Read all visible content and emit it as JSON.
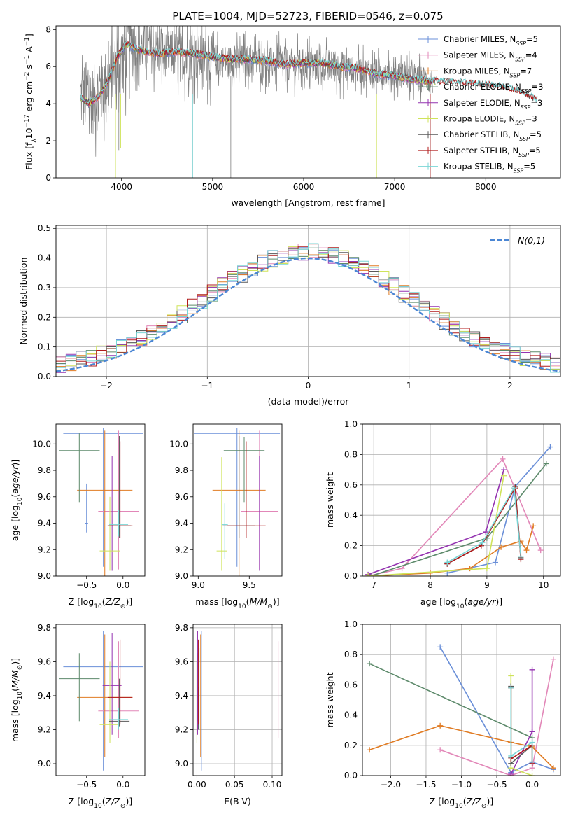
{
  "figure_title": "PLATE=1004, MJD=52723, FIBERID=0546, z=0.075",
  "colors": {
    "Chabrier MILES": "#6a8fd8",
    "Salpeter MILES": "#e287b8",
    "Kroupa MILES": "#e07b23",
    "Chabrier ELODIE": "#5d8a6b",
    "Salpeter ELODIE": "#9433b0",
    "Kroupa ELODIE": "#cfe35a",
    "Chabrier STELIB": "#585858",
    "Salpeter STELIB": "#b11b1b",
    "Kroupa STELIB": "#79d6d6"
  },
  "chart_data": [
    {
      "type": "line",
      "title": "PLATE=1004, MJD=52723, FIBERID=0546, z=0.075",
      "xlabel": "wavelength [Angstrom, rest frame]",
      "ylabel": "Flux [f",
      "xlim": [
        3280,
        8820
      ],
      "ylim": [
        0,
        8.2
      ],
      "xticks": [
        4000,
        5000,
        6000,
        7000,
        8000
      ],
      "yticks": [
        0,
        2,
        4,
        6,
        8
      ],
      "data_color": "#808080",
      "spectrum_envelope": {
        "x": [
          3550,
          3700,
          3900,
          4100,
          4300,
          4500,
          4800,
          5100,
          5400,
          5800,
          6200,
          6600,
          7000,
          7400
        ],
        "y": [
          4.4,
          4.2,
          5.6,
          7.3,
          6.9,
          6.7,
          6.5,
          6.3,
          6.3,
          6.1,
          6.1,
          5.8,
          5.6,
          5.2
        ]
      },
      "model_curve": {
        "x": [
          3550,
          3650,
          3750,
          3850,
          3950,
          4050,
          4150,
          4250,
          4400,
          4600,
          4800,
          5000,
          5200,
          5400,
          5600,
          5800,
          6000,
          6200,
          6400,
          6600,
          6800,
          7000,
          7200,
          7400,
          7600,
          7800,
          8000,
          8200,
          8400,
          8550
        ],
        "y": [
          4.3,
          4.0,
          4.4,
          5.2,
          6.5,
          7.2,
          7.0,
          6.8,
          6.7,
          6.8,
          6.7,
          6.5,
          6.4,
          6.4,
          6.3,
          6.1,
          6.2,
          6.2,
          6.0,
          5.9,
          5.6,
          5.5,
          5.3,
          5.2,
          5.15,
          5.1,
          5.0,
          4.9,
          4.6,
          4.2
        ]
      },
      "series": [
        {
          "name": "Chabrier MILES, N",
          "nssp": "=5"
        },
        {
          "name": "Salpeter MILES, N",
          "nssp": "=4"
        },
        {
          "name": "Kroupa MILES, N",
          "nssp": "=7"
        },
        {
          "name": "Chabrier ELODIE, N",
          "nssp": "=3"
        },
        {
          "name": "Salpeter ELODIE, N",
          "nssp": "=3"
        },
        {
          "name": "Kroupa ELODIE, N",
          "nssp": "=3"
        },
        {
          "name": "Chabrier STELIB, N",
          "nssp": "=5"
        },
        {
          "name": "Salpeter STELIB, N",
          "nssp": "=5"
        },
        {
          "name": "Kroupa STELIB, N",
          "nssp": "=5"
        }
      ]
    },
    {
      "type": "line",
      "xlabel": "(data-model)/error",
      "ylabel": "Normed distribution",
      "xlim": [
        -2.5,
        2.5
      ],
      "ylim": [
        0,
        0.51
      ],
      "xticks": [
        -2,
        -1,
        0,
        1,
        2
      ],
      "yticks": [
        0.0,
        0.1,
        0.2,
        0.3,
        0.4,
        0.5
      ],
      "legend": "N(0,1)",
      "grid": true
    },
    {
      "type": "scatter",
      "xlabel": "Z [log",
      "ylabel": "age  [log",
      "xlim": [
        -0.92,
        0.3
      ],
      "ylim": [
        9.0,
        10.15
      ],
      "xticks": [
        -0.5,
        0.0
      ],
      "yticks": [
        9.0,
        9.2,
        9.4,
        9.6,
        9.8,
        10.0
      ],
      "points": [
        {
          "m": "Chabrier MILES",
          "x": -0.27,
          "y": 10.08,
          "xe": 0.55,
          "ye0": 9.07,
          "ye1": 10.12
        },
        {
          "m": "Chabrier MILES",
          "x": -0.5,
          "y": 9.4,
          "xe": 0.02,
          "ye0": 9.33,
          "ye1": 9.7
        },
        {
          "m": "Salpeter MILES",
          "x": -0.06,
          "y": 9.49,
          "xe": 0.28,
          "ye0": 9.05,
          "ye1": 10.1
        },
        {
          "m": "Kroupa MILES",
          "x": -0.25,
          "y": 9.65,
          "xe": 0.38,
          "ye0": 9.0,
          "ye1": 10.1
        },
        {
          "m": "Chabrier ELODIE",
          "x": -0.6,
          "y": 9.95,
          "xe": 0.28,
          "ye0": 9.56,
          "ye1": 10.08
        },
        {
          "m": "Salpeter ELODIE",
          "x": -0.15,
          "y": 9.22,
          "xe": 0.13,
          "ye0": 9.04,
          "ye1": 9.91
        },
        {
          "m": "Kroupa ELODIE",
          "x": -0.18,
          "y": 9.19,
          "xe": 0.14,
          "ye0": 9.04,
          "ye1": 9.6
        },
        {
          "m": "Chabrier STELIB",
          "x": -0.05,
          "y": 9.38,
          "xe": 0.16,
          "ye0": 9.29,
          "ye1": 10.06
        },
        {
          "m": "Salpeter STELIB",
          "x": -0.04,
          "y": 9.38,
          "xe": 0.17,
          "ye0": 9.29,
          "ye1": 10.02
        },
        {
          "m": "Kroupa STELIB",
          "x": -0.06,
          "y": 9.39,
          "xe": 0.13,
          "ye0": 9.3,
          "ye1": 9.5
        }
      ]
    },
    {
      "type": "scatter",
      "xlabel": "mass [log",
      "ylabel": "",
      "xlim": [
        8.95,
        9.82
      ],
      "ylim": [
        9.0,
        10.15
      ],
      "xticks": [
        9.0,
        9.5
      ],
      "yticks": [
        9.0,
        9.2,
        9.4,
        9.6,
        9.8,
        10.0
      ],
      "points": [
        {
          "m": "Chabrier MILES",
          "x": 9.38,
          "y": 10.08,
          "xe": 0.42,
          "ye0": 9.07,
          "ye1": 10.12
        },
        {
          "m": "Salpeter MILES",
          "x": 9.6,
          "y": 9.49,
          "xe": 0.18,
          "ye0": 9.05,
          "ye1": 10.1
        },
        {
          "m": "Kroupa MILES",
          "x": 9.4,
          "y": 9.65,
          "xe": 0.26,
          "ye0": 9.0,
          "ye1": 10.1
        },
        {
          "m": "Chabrier ELODIE",
          "x": 9.45,
          "y": 9.95,
          "xe": 0.2,
          "ye0": 9.56,
          "ye1": 10.05
        },
        {
          "m": "Salpeter ELODIE",
          "x": 9.6,
          "y": 9.22,
          "xe": 0.17,
          "ye0": 9.04,
          "ye1": 9.91
        },
        {
          "m": "Kroupa ELODIE",
          "x": 9.23,
          "y": 9.19,
          "xe": 0.05,
          "ye0": 9.04,
          "ye1": 9.9
        },
        {
          "m": "Chabrier STELIB",
          "x": 9.4,
          "y": 9.38,
          "xe": 0.16,
          "ye0": 9.29,
          "ye1": 10.06
        },
        {
          "m": "Salpeter STELIB",
          "x": 9.47,
          "y": 9.38,
          "xe": 0.19,
          "ye0": 9.29,
          "ye1": 10.02
        },
        {
          "m": "Kroupa STELIB",
          "x": 9.26,
          "y": 9.39,
          "xe": 0.03,
          "ye0": 9.13,
          "ye1": 9.55
        }
      ]
    },
    {
      "type": "line",
      "xlabel": "age  [log",
      "ylabel": "mass weight",
      "xlim": [
        6.8,
        10.3
      ],
      "ylim": [
        0,
        1.0
      ],
      "xticks": [
        7,
        8,
        9,
        10
      ],
      "yticks": [
        0.0,
        0.2,
        0.4,
        0.6,
        0.8,
        1.0
      ],
      "grid": true,
      "series": [
        {
          "m": "Chabrier MILES",
          "x": [
            8.3,
            9.15,
            9.5,
            10.12
          ],
          "y": [
            0.02,
            0.09,
            0.59,
            0.85
          ]
        },
        {
          "m": "Salpeter MILES",
          "x": [
            6.9,
            7.5,
            9.28,
            9.95
          ],
          "y": [
            0.0,
            0.05,
            0.77,
            0.17
          ]
        },
        {
          "m": "Kroupa MILES",
          "x": [
            6.9,
            8.0,
            8.7,
            9.25,
            9.6,
            9.7,
            9.82
          ],
          "y": [
            0.0,
            0.02,
            0.05,
            0.19,
            0.23,
            0.17,
            0.33
          ]
        },
        {
          "m": "Chabrier ELODIE",
          "x": [
            6.95,
            9.0,
            10.05
          ],
          "y": [
            0.0,
            0.25,
            0.74
          ]
        },
        {
          "m": "Salpeter ELODIE",
          "x": [
            6.9,
            8.98,
            9.3
          ],
          "y": [
            0.01,
            0.29,
            0.7
          ]
        },
        {
          "m": "Kroupa ELODIE",
          "x": [
            6.9,
            9.0,
            9.3
          ],
          "y": [
            0.0,
            0.05,
            0.66
          ]
        },
        {
          "m": "Chabrier STELIB",
          "x": [
            8.3,
            8.9,
            9.5,
            9.6
          ],
          "y": [
            0.08,
            0.2,
            0.59,
            0.12
          ]
        },
        {
          "m": "Salpeter STELIB",
          "x": [
            8.3,
            8.9,
            9.5,
            9.6
          ],
          "y": [
            0.08,
            0.2,
            0.58,
            0.11
          ]
        },
        {
          "m": "Kroupa STELIB",
          "x": [
            8.3,
            8.92,
            9.48,
            9.6
          ],
          "y": [
            0.09,
            0.22,
            0.58,
            0.13
          ]
        }
      ]
    },
    {
      "type": "scatter",
      "xlabel": "Z [log",
      "ylabel": "mass [log",
      "xlim": [
        -0.92,
        0.3
      ],
      "ylim": [
        8.93,
        9.82
      ],
      "xticks": [
        -0.5,
        0.0
      ],
      "yticks": [
        9.0,
        9.2,
        9.4,
        9.6,
        9.8
      ],
      "points": [
        {
          "m": "Chabrier MILES",
          "x": -0.27,
          "y": 9.57,
          "xe": 0.55,
          "ye0": 8.96,
          "ye1": 9.78
        },
        {
          "m": "Salpeter MILES",
          "x": -0.06,
          "y": 9.31,
          "xe": 0.28,
          "ye0": 9.15,
          "ye1": 9.72
        },
        {
          "m": "Kroupa MILES",
          "x": -0.25,
          "y": 9.39,
          "xe": 0.38,
          "ye0": 9.04,
          "ye1": 9.76
        },
        {
          "m": "Chabrier ELODIE",
          "x": -0.6,
          "y": 9.5,
          "xe": 0.28,
          "ye0": 9.25,
          "ye1": 9.65
        },
        {
          "m": "Salpeter ELODIE",
          "x": -0.15,
          "y": 9.46,
          "xe": 0.13,
          "ye0": 9.17,
          "ye1": 9.77
        },
        {
          "m": "Kroupa ELODIE",
          "x": -0.18,
          "y": 9.23,
          "xe": 0.14,
          "ye0": 9.12,
          "ye1": 9.6
        },
        {
          "m": "Chabrier STELIB",
          "x": -0.05,
          "y": 9.25,
          "xe": 0.14,
          "ye0": 9.22,
          "ye1": 9.5
        },
        {
          "m": "Salpeter STELIB",
          "x": -0.04,
          "y": 9.39,
          "xe": 0.17,
          "ye0": 9.23,
          "ye1": 9.73
        },
        {
          "m": "Kroupa STELIB",
          "x": -0.06,
          "y": 9.26,
          "xe": 0.13,
          "ye0": 9.2,
          "ye1": 9.33
        }
      ]
    },
    {
      "type": "scatter",
      "xlabel": "E(B-V)",
      "ylabel": "",
      "xlim": [
        -0.005,
        0.113
      ],
      "ylim": [
        8.93,
        9.82
      ],
      "xticks": [
        0.0,
        0.05,
        0.1
      ],
      "yticks": [
        9.0,
        9.2,
        9.4,
        9.6,
        9.8
      ],
      "grid": true,
      "points": [
        {
          "m": "Chabrier MILES",
          "x": 0.006,
          "y": 9.57,
          "ye0": 8.96,
          "ye1": 9.78
        },
        {
          "m": "Salpeter MILES",
          "x": 0.108,
          "y": 9.31,
          "ye0": 9.15,
          "ye1": 9.72
        },
        {
          "m": "Kroupa MILES",
          "x": 0.005,
          "y": 9.39,
          "ye0": 9.04,
          "ye1": 9.76
        },
        {
          "m": "Chabrier ELODIE",
          "x": 0.001,
          "y": 9.5,
          "ye0": 9.25,
          "ye1": 9.65
        },
        {
          "m": "Salpeter ELODIE",
          "x": 0.001,
          "y": 9.46,
          "ye0": 9.17,
          "ye1": 9.78
        },
        {
          "m": "Kroupa ELODIE",
          "x": 0.0,
          "y": 9.23,
          "ye0": 9.12,
          "ye1": 9.6
        },
        {
          "m": "Chabrier STELIB",
          "x": 0.002,
          "y": 9.25,
          "ye0": 9.2,
          "ye1": 9.45
        },
        {
          "m": "Salpeter STELIB",
          "x": 0.002,
          "y": 9.39,
          "ye0": 9.23,
          "ye1": 9.73
        },
        {
          "m": "Kroupa STELIB",
          "x": 0.003,
          "y": 9.26,
          "ye0": 9.2,
          "ye1": 9.68
        }
      ]
    },
    {
      "type": "line",
      "xlabel": "Z [log",
      "ylabel": "mass weight",
      "xlim": [
        -2.4,
        0.4
      ],
      "ylim": [
        0,
        1.0
      ],
      "xticks": [
        -2.0,
        -1.5,
        -1.0,
        -0.5,
        0.0
      ],
      "yticks": [
        0.0,
        0.2,
        0.4,
        0.6,
        0.8,
        1.0
      ],
      "grid": true,
      "series": [
        {
          "m": "Chabrier MILES",
          "x": [
            -1.3,
            -0.3,
            0.0,
            0.3
          ],
          "y": [
            0.85,
            0.02,
            0.09,
            0.04
          ]
        },
        {
          "m": "Salpeter MILES",
          "x": [
            -1.3,
            -0.3,
            0.0,
            0.3
          ],
          "y": [
            0.17,
            0.0,
            0.05,
            0.77
          ]
        },
        {
          "m": "Kroupa MILES",
          "x": [
            -2.3,
            -1.3,
            -0.3,
            0.0,
            0.3
          ],
          "y": [
            0.17,
            0.33,
            0.22,
            0.19,
            0.05
          ]
        },
        {
          "m": "Chabrier ELODIE",
          "x": [
            -2.3,
            0.0
          ],
          "y": [
            0.74,
            0.25
          ]
        },
        {
          "m": "Salpeter ELODIE",
          "x": [
            -0.3,
            0.0,
            0.0
          ],
          "y": [
            0.01,
            0.29,
            0.7
          ]
        },
        {
          "m": "Kroupa ELODIE",
          "x": [
            -0.3,
            -0.3,
            0.0
          ],
          "y": [
            0.66,
            0.05,
            0.0
          ]
        },
        {
          "m": "Chabrier STELIB",
          "x": [
            -0.3,
            -0.3,
            -0.3,
            0.0
          ],
          "y": [
            0.59,
            0.12,
            0.08,
            0.2
          ]
        },
        {
          "m": "Salpeter STELIB",
          "x": [
            -0.3,
            -0.3,
            0.0,
            0.0
          ],
          "y": [
            0.58,
            0.11,
            0.2,
            0.08
          ]
        },
        {
          "m": "Kroupa STELIB",
          "x": [
            -0.3,
            -0.3,
            0.0,
            0.0
          ],
          "y": [
            0.58,
            0.13,
            0.22,
            0.09
          ]
        }
      ]
    }
  ]
}
